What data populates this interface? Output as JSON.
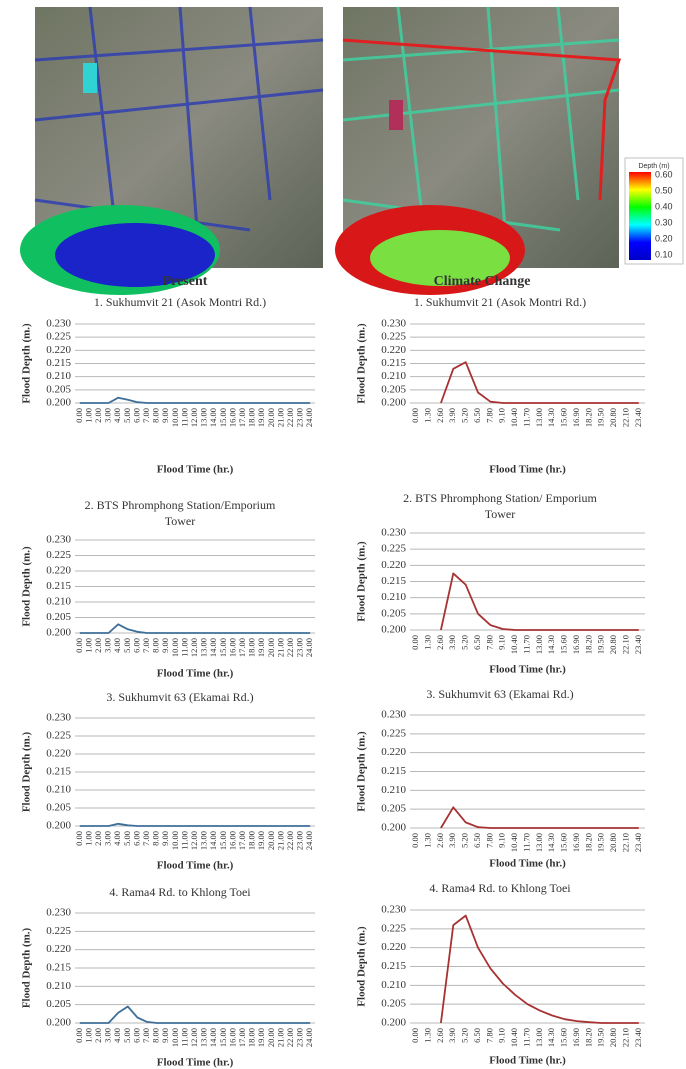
{
  "maps": {
    "titles": [
      "Present",
      "Climate Change"
    ],
    "legend": {
      "title": "Depth (m)",
      "colors": [
        "#ff0000",
        "#ffff00",
        "#00ff00",
        "#00ffff",
        "#0000ff",
        "#0000c8"
      ],
      "ticks": [
        {
          "value": 0.6,
          "label": "0.60"
        },
        {
          "value": 0.5,
          "label": "0.50"
        },
        {
          "value": 0.4,
          "label": "0.40"
        },
        {
          "value": 0.3,
          "label": "0.30"
        },
        {
          "value": 0.2,
          "label": "0.20"
        },
        {
          "value": 0.1,
          "label": "0.10"
        }
      ]
    }
  },
  "chart_data": [
    {
      "type": "line",
      "title": [
        "1. Sukhumvit 21 (Asok Montri Rd.)"
      ],
      "x_label": "Flood Time (hr.)",
      "y_label": "Flood Depth (m.)",
      "color": "#3e6f99",
      "categories": [
        "0.00",
        "1.00",
        "2.00",
        "3.00",
        "4.00",
        "5.00",
        "6.00",
        "7.00",
        "8.00",
        "9.00",
        "10.00",
        "11.00",
        "12.00",
        "13.00",
        "14.00",
        "15.00",
        "16.00",
        "17.00",
        "18.00",
        "19.00",
        "20.00",
        "21.00",
        "22.00",
        "23.00",
        "24.00"
      ],
      "values": [
        0.2,
        0.2,
        0.2,
        0.2,
        0.202,
        0.2012,
        0.2003,
        0.2,
        0.2,
        0.2,
        0.2,
        0.2,
        0.2,
        0.2,
        0.2,
        0.2,
        0.2,
        0.2,
        0.2,
        0.2,
        0.2,
        0.2,
        0.2,
        0.2,
        0.2
      ],
      "ylim": [
        0.2,
        0.23
      ],
      "yticks": [
        {
          "value": 0.2,
          "label": "0.200"
        },
        {
          "value": 0.205,
          "label": "0.205"
        },
        {
          "value": 0.21,
          "label": "0.210"
        },
        {
          "value": 0.215,
          "label": "0.215"
        },
        {
          "value": 0.22,
          "label": "0.220"
        },
        {
          "value": 0.225,
          "label": "0.225"
        },
        {
          "value": 0.23,
          "label": "0.230"
        }
      ],
      "grid": true
    },
    {
      "type": "line",
      "title": [
        "1. Sukhumvit 21 (Asok Montri Rd.)"
      ],
      "x_label": "Flood Time (hr.)",
      "y_label": "Flood Depth (m.)",
      "color": "#a83232",
      "categories": [
        "0.00",
        "1.30",
        "2.60",
        "3.90",
        "5.20",
        "6.50",
        "7.80",
        "9.10",
        "10.40",
        "11.70",
        "13.00",
        "14.30",
        "15.60",
        "16.90",
        "18.20",
        "19.50",
        "20.80",
        "22.10",
        "23.40"
      ],
      "values": [
        null,
        null,
        0.2,
        0.213,
        0.2155,
        0.204,
        0.2005,
        0.2,
        0.2,
        0.2,
        0.2,
        0.2,
        0.2,
        0.2,
        0.2,
        0.2,
        0.2,
        0.2,
        0.2
      ],
      "ylim": [
        0.2,
        0.23
      ],
      "yticks": [
        {
          "value": 0.2,
          "label": "0.200"
        },
        {
          "value": 0.205,
          "label": "0.205"
        },
        {
          "value": 0.21,
          "label": "0.210"
        },
        {
          "value": 0.215,
          "label": "0.215"
        },
        {
          "value": 0.22,
          "label": "0.220"
        },
        {
          "value": 0.225,
          "label": "0.225"
        },
        {
          "value": 0.23,
          "label": "0.230"
        }
      ],
      "grid": true
    },
    {
      "type": "line",
      "title": [
        "2. BTS Phromphong Station/Emporium",
        "Tower"
      ],
      "x_label": "Flood Time (hr.)",
      "y_label": "Flood Depth (m.)",
      "color": "#3e6f99",
      "categories": [
        "0.00",
        "1.00",
        "2.00",
        "3.00",
        "4.00",
        "5.00",
        "6.00",
        "7.00",
        "8.00",
        "9.00",
        "10.00",
        "11.00",
        "12.00",
        "13.00",
        "14.00",
        "15.00",
        "16.00",
        "17.00",
        "18.00",
        "19.00",
        "20.00",
        "21.00",
        "22.00",
        "23.00",
        "24.00"
      ],
      "values": [
        0.2,
        0.2,
        0.2,
        0.2,
        0.2028,
        0.2012,
        0.2004,
        0.2,
        0.2,
        0.2,
        0.2,
        0.2,
        0.2,
        0.2,
        0.2,
        0.2,
        0.2,
        0.2,
        0.2,
        0.2,
        0.2,
        0.2,
        0.2,
        0.2,
        0.2
      ],
      "ylim": [
        0.2,
        0.23
      ],
      "yticks": [
        {
          "value": 0.2,
          "label": "0.200"
        },
        {
          "value": 0.205,
          "label": "0.205"
        },
        {
          "value": 0.21,
          "label": "0.210"
        },
        {
          "value": 0.215,
          "label": "0.215"
        },
        {
          "value": 0.22,
          "label": "0.220"
        },
        {
          "value": 0.225,
          "label": "0.225"
        },
        {
          "value": 0.23,
          "label": "0.230"
        }
      ],
      "grid": true
    },
    {
      "type": "line",
      "title": [
        "2. BTS Phromphong Station/ Emporium",
        "Tower"
      ],
      "x_label": "Flood Time (hr.)",
      "y_label": "Flood Depth (m.)",
      "color": "#a83232",
      "categories": [
        "0.00",
        "1.30",
        "2.60",
        "3.90",
        "5.20",
        "6.50",
        "7.80",
        "9.10",
        "10.40",
        "11.70",
        "13.00",
        "14.30",
        "15.60",
        "16.90",
        "18.20",
        "19.50",
        "20.80",
        "22.10",
        "23.40"
      ],
      "values": [
        null,
        null,
        0.2,
        0.2175,
        0.214,
        0.205,
        0.2015,
        0.2003,
        0.2,
        0.2,
        0.2,
        0.2,
        0.2,
        0.2,
        0.2,
        0.2,
        0.2,
        0.2,
        0.2
      ],
      "ylim": [
        0.2,
        0.23
      ],
      "yticks": [
        {
          "value": 0.2,
          "label": "0.200"
        },
        {
          "value": 0.205,
          "label": "0.205"
        },
        {
          "value": 0.21,
          "label": "0.210"
        },
        {
          "value": 0.215,
          "label": "0.215"
        },
        {
          "value": 0.22,
          "label": "0.220"
        },
        {
          "value": 0.225,
          "label": "0.225"
        },
        {
          "value": 0.23,
          "label": "0.230"
        }
      ],
      "grid": true
    },
    {
      "type": "line",
      "title": [
        "3. Sukhumvit 63 (Ekamai Rd.)"
      ],
      "x_label": "Flood Time (hr.)",
      "y_label": "Flood Depth (m.)",
      "color": "#3e6f99",
      "categories": [
        "0.00",
        "1.00",
        "2.00",
        "3.00",
        "4.00",
        "5.00",
        "6.00",
        "7.00",
        "8.00",
        "9.00",
        "10.00",
        "11.00",
        "12.00",
        "13.00",
        "14.00",
        "15.00",
        "16.00",
        "17.00",
        "18.00",
        "19.00",
        "20.00",
        "21.00",
        "22.00",
        "23.00",
        "24.00"
      ],
      "values": [
        0.2,
        0.2,
        0.2,
        0.2,
        0.2006,
        0.2002,
        0.2,
        0.2,
        0.2,
        0.2,
        0.2,
        0.2,
        0.2,
        0.2,
        0.2,
        0.2,
        0.2,
        0.2,
        0.2,
        0.2,
        0.2,
        0.2,
        0.2,
        0.2,
        0.2
      ],
      "ylim": [
        0.2,
        0.23
      ],
      "yticks": [
        {
          "value": 0.2,
          "label": "0.200"
        },
        {
          "value": 0.205,
          "label": "0.205"
        },
        {
          "value": 0.21,
          "label": "0.210"
        },
        {
          "value": 0.215,
          "label": "0.215"
        },
        {
          "value": 0.22,
          "label": "0.220"
        },
        {
          "value": 0.225,
          "label": "0.225"
        },
        {
          "value": 0.23,
          "label": "0.230"
        }
      ],
      "grid": true
    },
    {
      "type": "line",
      "title": [
        "3. Sukhumvit 63 (Ekamai Rd.)"
      ],
      "x_label": "Flood Time (hr.)",
      "y_label": "Flood Depth (m.)",
      "color": "#a83232",
      "categories": [
        "0.00",
        "1.30",
        "2.60",
        "3.90",
        "5.20",
        "6.50",
        "7.80",
        "9.10",
        "10.40",
        "11.70",
        "13.00",
        "14.30",
        "15.60",
        "16.90",
        "18.20",
        "19.50",
        "20.80",
        "22.10",
        "23.40"
      ],
      "values": [
        null,
        null,
        0.2,
        0.2055,
        0.2015,
        0.2002,
        0.2,
        0.2,
        0.2,
        0.2,
        0.2,
        0.2,
        0.2,
        0.2,
        0.2,
        0.2,
        0.2,
        0.2,
        0.2
      ],
      "ylim": [
        0.2,
        0.23
      ],
      "yticks": [
        {
          "value": 0.2,
          "label": "0.200"
        },
        {
          "value": 0.205,
          "label": "0.205"
        },
        {
          "value": 0.21,
          "label": "0.210"
        },
        {
          "value": 0.215,
          "label": "0.215"
        },
        {
          "value": 0.22,
          "label": "0.220"
        },
        {
          "value": 0.225,
          "label": "0.225"
        },
        {
          "value": 0.23,
          "label": "0.230"
        }
      ],
      "grid": true
    },
    {
      "type": "line",
      "title": [
        "4. Rama4 Rd. to Khlong Toei"
      ],
      "x_label": "Flood Time (hr.)",
      "y_label": "Flood Depth (m.)",
      "color": "#3e6f99",
      "categories": [
        "0.00",
        "1.00",
        "2.00",
        "3.00",
        "4.00",
        "5.00",
        "6.00",
        "7.00",
        "8.00",
        "9.00",
        "10.00",
        "11.00",
        "12.00",
        "13.00",
        "14.00",
        "15.00",
        "16.00",
        "17.00",
        "18.00",
        "19.00",
        "20.00",
        "21.00",
        "22.00",
        "23.00",
        "24.00"
      ],
      "values": [
        0.2,
        0.2,
        0.2,
        0.2,
        0.2028,
        0.2045,
        0.2015,
        0.2003,
        0.2,
        0.2,
        0.2,
        0.2,
        0.2,
        0.2,
        0.2,
        0.2,
        0.2,
        0.2,
        0.2,
        0.2,
        0.2,
        0.2,
        0.2,
        0.2,
        0.2
      ],
      "ylim": [
        0.2,
        0.23
      ],
      "yticks": [
        {
          "value": 0.2,
          "label": "0.200"
        },
        {
          "value": 0.205,
          "label": "0.205"
        },
        {
          "value": 0.21,
          "label": "0.210"
        },
        {
          "value": 0.215,
          "label": "0.215"
        },
        {
          "value": 0.22,
          "label": "0.220"
        },
        {
          "value": 0.225,
          "label": "0.225"
        },
        {
          "value": 0.23,
          "label": "0.230"
        }
      ],
      "grid": true
    },
    {
      "type": "line",
      "title": [
        "4. Rama4 Rd. to Khlong Toei"
      ],
      "x_label": "Flood Time (hr.)",
      "y_label": "Flood Depth (m.)",
      "color": "#a83232",
      "categories": [
        "0.00",
        "1.30",
        "2.60",
        "3.90",
        "5.20",
        "6.50",
        "7.80",
        "9.10",
        "10.40",
        "11.70",
        "13.00",
        "14.30",
        "15.60",
        "16.90",
        "18.20",
        "19.50",
        "20.80",
        "22.10",
        "23.40"
      ],
      "values": [
        null,
        null,
        0.2,
        0.226,
        0.2285,
        0.22,
        0.2145,
        0.2105,
        0.2075,
        0.205,
        0.2033,
        0.202,
        0.201,
        0.2005,
        0.2002,
        0.2,
        0.2,
        0.2,
        0.2
      ],
      "ylim": [
        0.2,
        0.23
      ],
      "yticks": [
        {
          "value": 0.2,
          "label": "0.200"
        },
        {
          "value": 0.205,
          "label": "0.205"
        },
        {
          "value": 0.21,
          "label": "0.210"
        },
        {
          "value": 0.215,
          "label": "0.215"
        },
        {
          "value": 0.22,
          "label": "0.220"
        },
        {
          "value": 0.225,
          "label": "0.225"
        },
        {
          "value": 0.23,
          "label": "0.230"
        }
      ],
      "grid": true
    }
  ]
}
